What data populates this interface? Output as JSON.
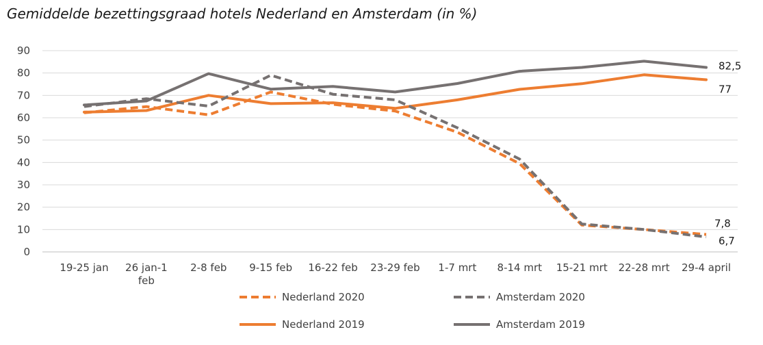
{
  "colors": {
    "nederland": "#ed7d31",
    "amsterdam": "#767171",
    "grid": "#d9d9d9",
    "axis": "#bfbfbf"
  },
  "chart_data": {
    "type": "line",
    "title": "Gemiddelde bezettingsgraad hotels Nederland en Amsterdam (in %)",
    "xlabel": "",
    "ylabel": "",
    "categories": [
      [
        "19-25 jan"
      ],
      [
        "26 jan-1",
        "feb"
      ],
      [
        "2-8 feb"
      ],
      [
        "9-15 feb"
      ],
      [
        "16-22 feb"
      ],
      [
        "23-29 feb"
      ],
      [
        "1-7 mrt"
      ],
      [
        "8-14 mrt"
      ],
      [
        "15-21 mrt"
      ],
      [
        "22-28 mrt"
      ],
      [
        "29-4 april"
      ]
    ],
    "ylim": [
      0,
      90
    ],
    "yticks": [
      0,
      10,
      20,
      30,
      40,
      50,
      60,
      70,
      80,
      90
    ],
    "grid": true,
    "legend_position": "bottom",
    "series": [
      {
        "name": "Nederland 2020",
        "color": "#ed7d31",
        "dashed": true,
        "values": [
          62.2,
          65,
          61.3,
          71.5,
          66,
          63,
          53.5,
          39.5,
          12,
          10,
          7.8
        ]
      },
      {
        "name": "Amsterdam 2020",
        "color": "#767171",
        "dashed": true,
        "values": [
          65,
          68.5,
          65.2,
          79,
          70.5,
          68,
          55.5,
          41.5,
          12.5,
          10,
          6.7
        ]
      },
      {
        "name": "Nederland 2019",
        "color": "#ed7d31",
        "dashed": false,
        "values": [
          62.5,
          63.2,
          70,
          66.3,
          66.7,
          64.2,
          68,
          72.7,
          75.2,
          79.2,
          77
        ]
      },
      {
        "name": "Amsterdam 2019",
        "color": "#767171",
        "dashed": false,
        "values": [
          65.7,
          67.5,
          79.7,
          72.8,
          74,
          71.5,
          75.3,
          80.8,
          82.5,
          85.3,
          82.5
        ]
      }
    ],
    "end_labels": [
      {
        "series": "Amsterdam 2019",
        "text": "82,5"
      },
      {
        "series": "Nederland 2019",
        "text": "77"
      },
      {
        "series": "Nederland 2020",
        "text": "7,8"
      },
      {
        "series": "Amsterdam 2020",
        "text": "6,7"
      }
    ]
  }
}
